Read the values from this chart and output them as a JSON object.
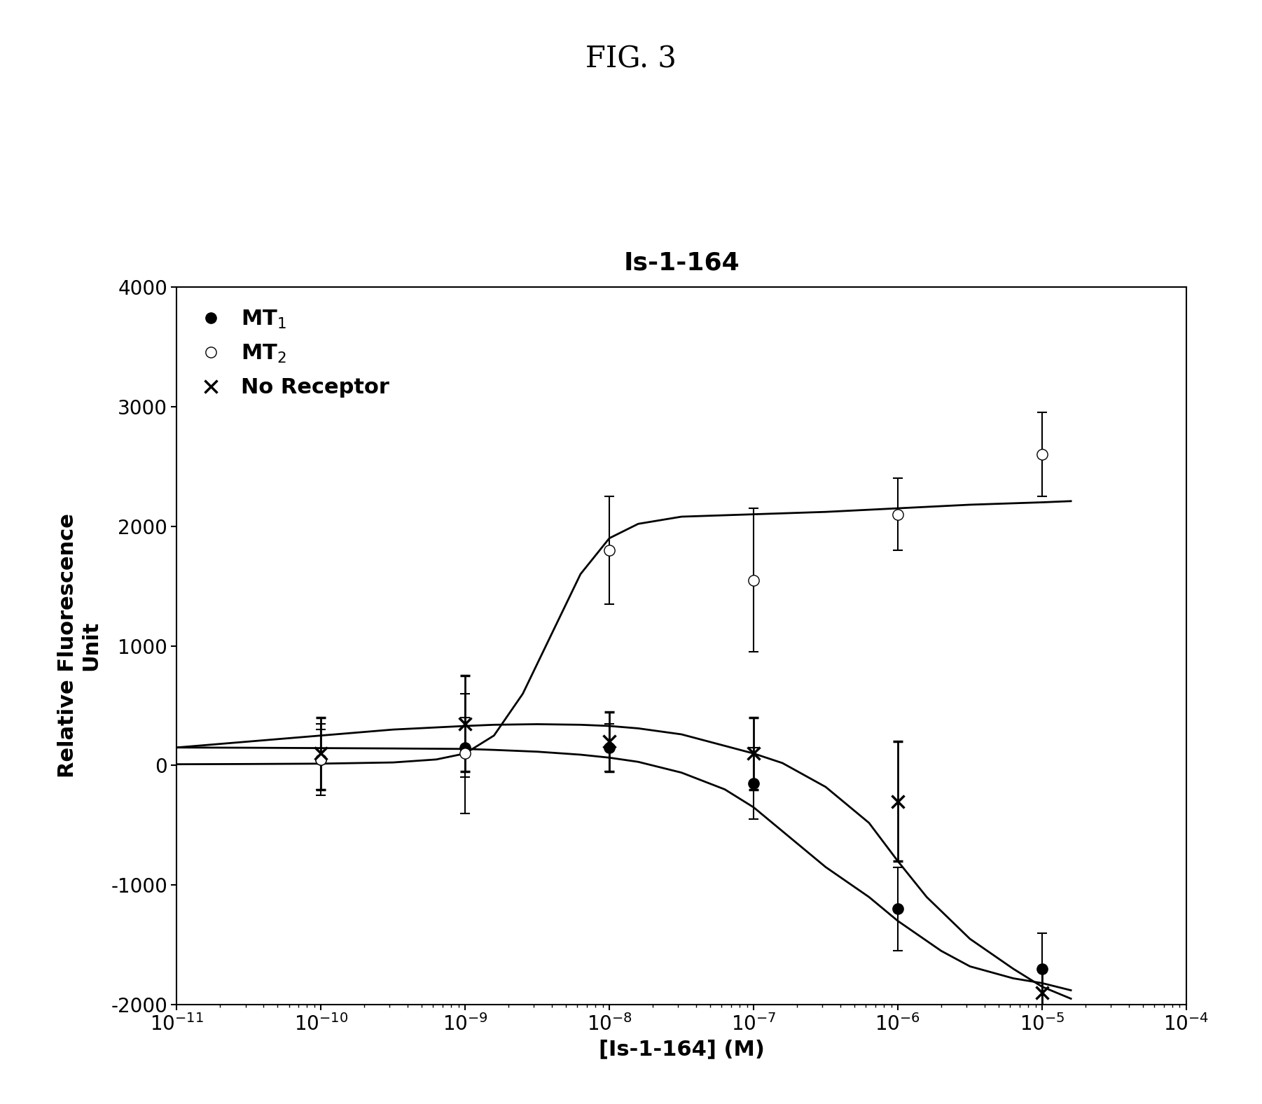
{
  "title_fig": "FIG. 3",
  "title_plot": "Is-1-164",
  "xlabel": "[Is-1-164] (M)",
  "ylabel": "Relative Fluorescence\nUnit",
  "xlim_log": [
    -11,
    -4
  ],
  "ylim": [
    -2000,
    4000
  ],
  "yticks": [
    -2000,
    -1000,
    0,
    1000,
    2000,
    3000,
    4000
  ],
  "xticks_log": [
    -11,
    -10,
    -9,
    -8,
    -7,
    -6,
    -5,
    -4
  ],
  "MT1_x": [
    1e-10,
    1e-09,
    1e-08,
    1e-07,
    1e-06,
    1e-05
  ],
  "MT1_y": [
    50,
    150,
    150,
    -150,
    -1200,
    -1700
  ],
  "MT1_yerr": [
    300,
    250,
    200,
    300,
    350,
    300
  ],
  "MT2_x": [
    1e-10,
    1e-09,
    1e-08,
    1e-07,
    1e-06,
    1e-05
  ],
  "MT2_y": [
    50,
    100,
    1800,
    1550,
    2100,
    2600
  ],
  "MT2_yerr": [
    250,
    500,
    450,
    600,
    300,
    350
  ],
  "NR_x": [
    1e-10,
    1e-09,
    1e-08,
    1e-07,
    1e-06,
    1e-05
  ],
  "NR_y": [
    100,
    350,
    200,
    100,
    -300,
    -1900
  ],
  "NR_yerr": [
    300,
    400,
    250,
    300,
    500,
    200
  ],
  "MT1_fit_log_x": [
    -11,
    -10.5,
    -10.0,
    -9.5,
    -9.0,
    -8.8,
    -8.5,
    -8.2,
    -8.0,
    -7.8,
    -7.5,
    -7.2,
    -7.0,
    -6.8,
    -6.5,
    -6.2,
    -6.0,
    -5.7,
    -5.5,
    -5.2,
    -5.0,
    -4.8
  ],
  "MT1_fit_y": [
    150,
    148,
    145,
    142,
    138,
    130,
    115,
    90,
    65,
    30,
    -60,
    -200,
    -350,
    -550,
    -850,
    -1100,
    -1300,
    -1550,
    -1680,
    -1780,
    -1820,
    -1880
  ],
  "MT2_fit_log_x": [
    -11,
    -10.5,
    -10.0,
    -9.5,
    -9.2,
    -9.0,
    -8.8,
    -8.6,
    -8.4,
    -8.2,
    -8.0,
    -7.8,
    -7.5,
    -7.0,
    -6.5,
    -6.0,
    -5.5,
    -5.0,
    -4.8
  ],
  "MT2_fit_y": [
    10,
    12,
    15,
    25,
    50,
    100,
    250,
    600,
    1100,
    1600,
    1900,
    2020,
    2080,
    2100,
    2120,
    2150,
    2180,
    2200,
    2210
  ],
  "NR_fit_log_x": [
    -11,
    -10.5,
    -10.0,
    -9.5,
    -9.0,
    -8.8,
    -8.5,
    -8.2,
    -8.0,
    -7.8,
    -7.5,
    -7.0,
    -6.8,
    -6.5,
    -6.2,
    -6.0,
    -5.8,
    -5.5,
    -5.2,
    -5.0,
    -4.8
  ],
  "NR_fit_y": [
    150,
    200,
    250,
    300,
    330,
    340,
    345,
    340,
    330,
    310,
    260,
    100,
    20,
    -180,
    -480,
    -800,
    -1100,
    -1450,
    -1700,
    -1850,
    -1950
  ],
  "line_color": "#000000",
  "marker_color": "#000000",
  "bg_color": "#ffffff",
  "title_fontsize": 26,
  "fig_title_fontsize": 30,
  "label_fontsize": 22,
  "tick_fontsize": 20,
  "legend_fontsize": 22,
  "marker_size": 11,
  "linewidth": 2.0,
  "capsize": 5
}
